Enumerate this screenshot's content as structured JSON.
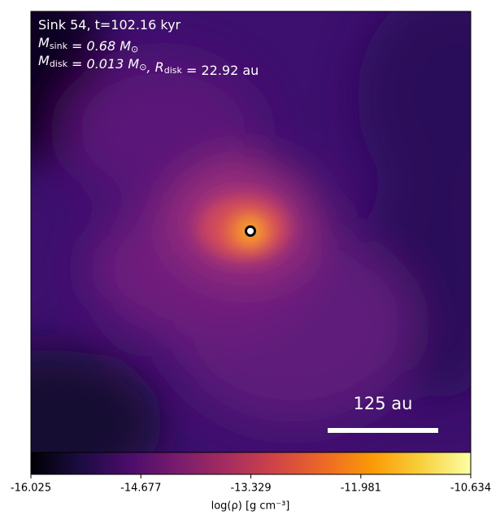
{
  "chart_data": {
    "type": "image",
    "annotation_lines": [
      [
        {
          "text": "Sink 54, t=102.16 kyr"
        }
      ],
      [
        {
          "text": "M",
          "sub": "sink"
        },
        {
          "text": " = 0.68 M",
          "sub": "⊙"
        }
      ],
      [
        {
          "text": "M",
          "sub": "disk"
        },
        {
          "text": " = 0.013 M",
          "sub": "⊙"
        },
        {
          "text": ", R",
          "sub": "disk"
        },
        {
          "text": " = 22.92 au"
        }
      ]
    ],
    "scale_bar_label": "125 au",
    "colormap": "inferno",
    "clim": [
      -16.025,
      -10.634
    ],
    "cticks": [
      -16.025,
      -14.677,
      -13.329,
      -11.981,
      -10.634
    ],
    "colorbar_label": "log(ρ) [g cm⁻³]"
  }
}
